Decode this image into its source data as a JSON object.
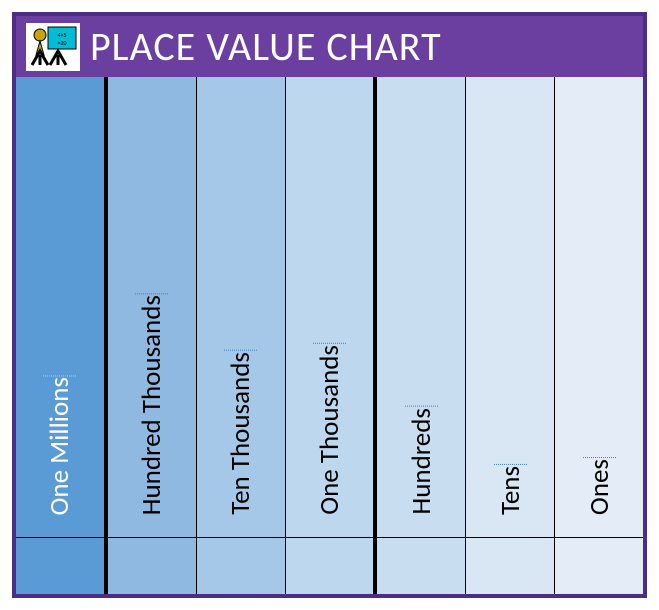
{
  "chart": {
    "type": "table",
    "title": "PLACE VALUE CHART",
    "border_color": "#4b2e83",
    "header": {
      "background": "#6b3fa0",
      "title_color": "#ffffff",
      "title_fontsize": 40,
      "title_fontweight": 400
    },
    "columns": [
      {
        "label": "One Millions",
        "bg": "#5b9bd5",
        "text": "#ffffff",
        "underline": "#a8cef0",
        "group_start": true
      },
      {
        "label": "Hundred Thousands",
        "bg": "#8fb9e0",
        "text": "#000000",
        "underline": "#4a7fb5",
        "group_start": true
      },
      {
        "label": "Ten Thousands",
        "bg": "#a6c8e8",
        "text": "#000000",
        "underline": "#4a7fb5",
        "group_start": false
      },
      {
        "label": "One Thousands",
        "bg": "#bdd7ee",
        "text": "#000000",
        "underline": "#4a7fb5",
        "group_start": false
      },
      {
        "label": "Hundreds",
        "bg": "#c9ddf0",
        "text": "#000000",
        "underline": "#4a7fb5",
        "group_start": true
      },
      {
        "label": "Tens",
        "bg": "#d9e6f4",
        "text": "#000000",
        "underline": "#4a7fb5",
        "group_start": false
      },
      {
        "label": "Ones",
        "bg": "#e4edf7",
        "text": "#000000",
        "underline": "#4a7fb5",
        "group_start": false
      }
    ],
    "cell_border_color": "#000000",
    "label_fontsize": 27,
    "empty_row_height": 56,
    "logo": {
      "bg": "#ffffff",
      "board": "#00bcd4",
      "figure": "#c9a500",
      "accent": "#000000"
    }
  }
}
